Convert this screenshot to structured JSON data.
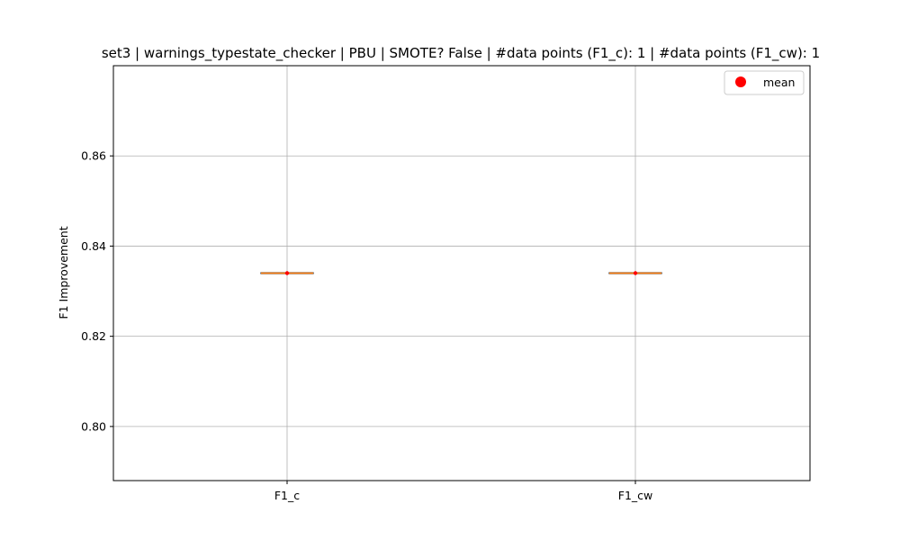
{
  "chart_data": {
    "type": "box",
    "title": "set3 | warnings_typestate_checker | PBU | SMOTE? False | #data points (F1_c): 1 | #data points (F1_cw): 1",
    "xlabel": "",
    "ylabel": "F1 Improvement",
    "categories": [
      "F1_c",
      "F1_cw"
    ],
    "boxes": [
      {
        "category": "F1_c",
        "min": 0.834,
        "q1": 0.834,
        "median": 0.834,
        "q3": 0.834,
        "max": 0.834,
        "mean": 0.834
      },
      {
        "category": "F1_cw",
        "min": 0.834,
        "q1": 0.834,
        "median": 0.834,
        "q3": 0.834,
        "max": 0.834,
        "mean": 0.834
      }
    ],
    "ylim": [
      0.788,
      0.88
    ],
    "yticks": [
      0.8,
      0.82,
      0.84,
      0.86
    ],
    "ytick_labels": [
      "0.80",
      "0.82",
      "0.84",
      "0.86"
    ],
    "grid": true,
    "legend": {
      "position": "top-right",
      "entries": [
        {
          "label": "mean",
          "marker": "circle",
          "color": "#ff0000"
        }
      ]
    },
    "colors": {
      "median": "#ff7f0e",
      "mean": "#ff0000",
      "box": "#000000",
      "grid": "#b0b0b0"
    }
  }
}
